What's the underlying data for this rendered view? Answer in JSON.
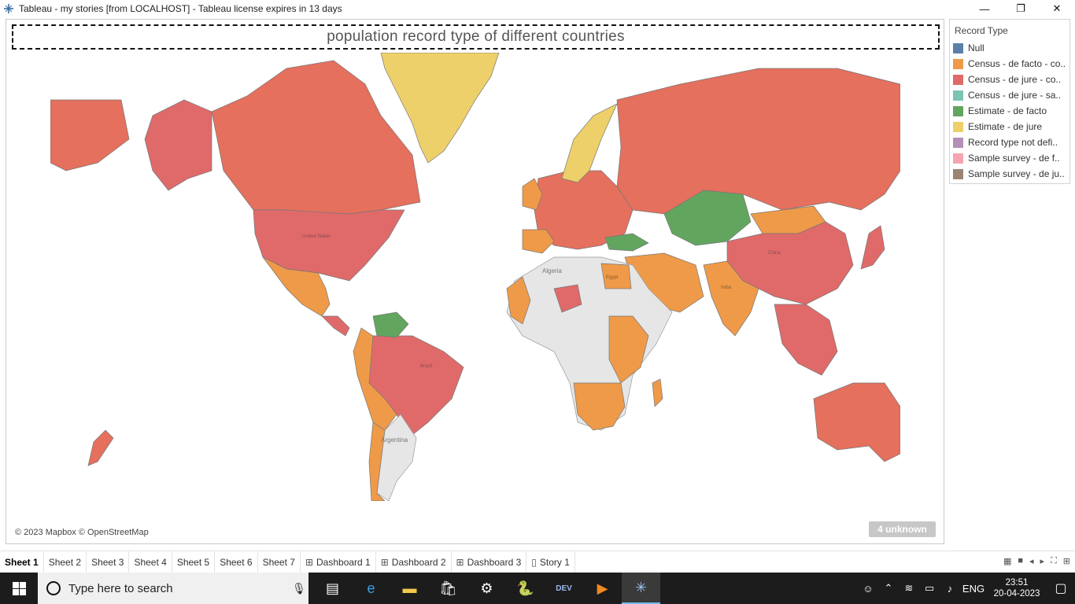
{
  "window": {
    "title": "Tableau - my stories [from LOCALHOST] - Tableau license expires in 13 days",
    "minimize": "—",
    "restore": "❐",
    "close": "✕"
  },
  "sheet": {
    "title": "population record type of different countries",
    "attribution": "© 2023 Mapbox © OpenStreetMap",
    "unknown_badge": "4 unknown",
    "map_labels": [
      "Algeria",
      "United States",
      "India",
      "China",
      "Brazil",
      "Argentina",
      "Egypt"
    ]
  },
  "legend": {
    "title": "Record Type",
    "items": [
      {
        "label": "Null",
        "color": "#5b7fa8"
      },
      {
        "label": "Census - de facto - co..",
        "color": "#ef9a48"
      },
      {
        "label": "Census - de jure - co..",
        "color": "#e06a6a"
      },
      {
        "label": "Census - de jure - sa..",
        "color": "#7cc4b4"
      },
      {
        "label": "Estimate - de facto",
        "color": "#62a55f"
      },
      {
        "label": "Estimate - de jure",
        "color": "#edd06a"
      },
      {
        "label": "Record type not defi..",
        "color": "#b48fb8"
      },
      {
        "label": "Sample survey - de f..",
        "color": "#f5a5b0"
      },
      {
        "label": "Sample survey - de ju..",
        "color": "#9c8473"
      }
    ]
  },
  "tabs": [
    {
      "label": "Sheet 1",
      "icon": "",
      "active": true
    },
    {
      "label": "Sheet 2",
      "icon": ""
    },
    {
      "label": "Sheet 3",
      "icon": ""
    },
    {
      "label": "Sheet 4",
      "icon": ""
    },
    {
      "label": "Sheet 5",
      "icon": ""
    },
    {
      "label": "Sheet 6",
      "icon": ""
    },
    {
      "label": "Sheet 7",
      "icon": ""
    },
    {
      "label": "Dashboard 1",
      "icon": "⊞"
    },
    {
      "label": "Dashboard 2",
      "icon": "⊞"
    },
    {
      "label": "Dashboard 3",
      "icon": "⊞"
    },
    {
      "label": "Story 1",
      "icon": "▯"
    }
  ],
  "taskbar": {
    "search_placeholder": "Type here to search",
    "language": "ENG",
    "time": "23:51",
    "date": "20-04-2023"
  }
}
